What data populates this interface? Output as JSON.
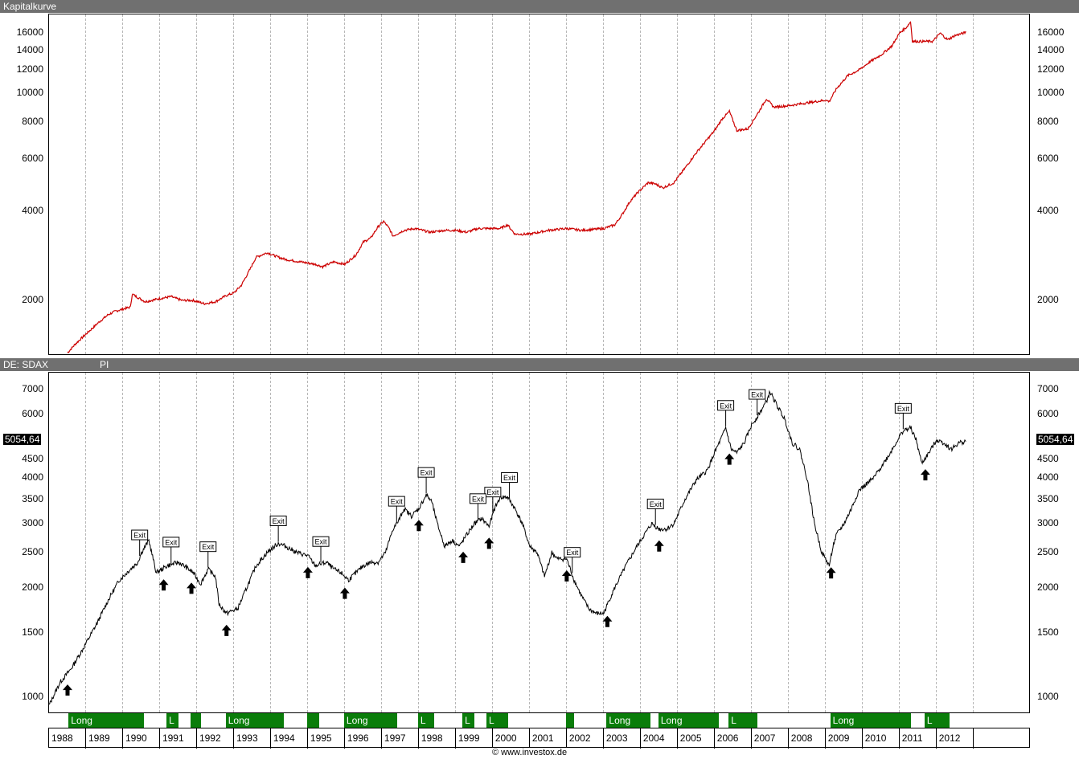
{
  "panel_top": {
    "title": "Kapitalkurve"
  },
  "panel_bottom": {
    "title": "DE: SDAX",
    "subtitle": "PI",
    "last_value": "5054,64"
  },
  "credit": "© www.investox.de",
  "colors": {
    "equity": "#cc0000",
    "price": "#000000",
    "long_bar": "#0a7d0a",
    "titlebar": "#707070"
  },
  "icons": [
    "up-arrow-icon",
    "exit-marker"
  ],
  "chart_data": [
    {
      "type": "line",
      "title": "Kapitalkurve",
      "scale": "log",
      "ylim": [
        1300,
        18500
      ],
      "yticks": [
        2000,
        4000,
        6000,
        8000,
        10000,
        12000,
        14000,
        16000
      ],
      "series": [
        {
          "x": [
            1988.5,
            1988.7,
            1988.9,
            1989.1,
            1989.35,
            1989.6,
            1989.8,
            1990.0,
            1990.2,
            1990.25,
            1990.6,
            1991.0,
            1991.3,
            1991.6,
            1991.9,
            1992.2,
            1992.5,
            1992.8,
            1993.0,
            1993.2,
            1993.4,
            1993.6,
            1993.9,
            1994.2,
            1994.4,
            1994.8,
            1995.2,
            1995.4,
            1995.7,
            1996.0,
            1996.3,
            1996.5,
            1996.7,
            1996.9,
            1997.05,
            1997.2,
            1997.3,
            1997.6,
            1997.9,
            1998.3,
            1998.7,
            1999.0,
            1999.3,
            1999.6,
            2000.0,
            2000.2,
            2000.4,
            2000.6,
            2001.0,
            2001.5,
            2002.0,
            2002.4,
            2003.0,
            2003.3,
            2003.5,
            2003.7,
            2003.9,
            2004.2,
            2004.4,
            2004.6,
            2004.9,
            2005.2,
            2005.5,
            2005.8,
            2006.0,
            2006.2,
            2006.4,
            2006.6,
            2006.9,
            2007.2,
            2007.4,
            2007.6,
            2008.0,
            2008.5,
            2009.0,
            2009.1,
            2009.3,
            2009.6,
            2009.9,
            2010.2,
            2010.5,
            2010.8,
            2011.0,
            2011.2,
            2011.3,
            2011.35,
            2011.6,
            2011.8,
            2011.9,
            2012.1,
            2012.3,
            2012.5,
            2012.8
          ],
          "y": [
            1330,
            1420,
            1500,
            1580,
            1690,
            1790,
            1840,
            1870,
            1900,
            2100,
            1980,
            2030,
            2060,
            2000,
            2000,
            1950,
            1980,
            2080,
            2120,
            2250,
            2500,
            2800,
            2900,
            2800,
            2750,
            2700,
            2650,
            2600,
            2700,
            2650,
            2850,
            3150,
            3250,
            3550,
            3700,
            3500,
            3300,
            3450,
            3500,
            3400,
            3450,
            3450,
            3400,
            3500,
            3500,
            3500,
            3600,
            3350,
            3350,
            3450,
            3500,
            3450,
            3500,
            3600,
            3900,
            4300,
            4600,
            5000,
            4950,
            4800,
            5000,
            5600,
            6300,
            7000,
            7500,
            8200,
            8700,
            7500,
            7600,
            8700,
            9600,
            9000,
            9100,
            9300,
            9500,
            9400,
            10400,
            11500,
            12000,
            12800,
            13500,
            14500,
            16000,
            16800,
            17500,
            15000,
            15000,
            15000,
            15000,
            16000,
            15200,
            15700,
            16100
          ]
        }
      ]
    },
    {
      "type": "line",
      "title": "DE: SDAX",
      "scale": "log",
      "ylim": [
        900,
        7800
      ],
      "yticks": [
        1000,
        1500,
        2000,
        2500,
        3000,
        3500,
        4000,
        4500,
        6000,
        7000
      ],
      "last_value": 5054.64,
      "series": [
        {
          "name": "SDAX",
          "x": [
            1988.0,
            1988.1,
            1988.3,
            1988.6,
            1988.9,
            1989.3,
            1989.6,
            1989.9,
            1990.2,
            1990.4,
            1990.5,
            1990.7,
            1990.9,
            1991.2,
            1991.5,
            1991.7,
            1991.9,
            1992.1,
            1992.3,
            1992.5,
            1992.6,
            1992.8,
            1992.9,
            1993.1,
            1993.3,
            1993.6,
            1993.9,
            1994.2,
            1994.4,
            1994.7,
            1995.0,
            1995.2,
            1995.5,
            1995.7,
            1995.9,
            1996.1,
            1996.3,
            1996.5,
            1996.7,
            1996.9,
            1997.1,
            1997.3,
            1997.45,
            1997.6,
            1997.8,
            1998.0,
            1998.2,
            1998.35,
            1998.5,
            1998.7,
            1998.9,
            1999.1,
            1999.3,
            1999.5,
            1999.7,
            1999.9,
            2000.05,
            2000.2,
            2000.4,
            2000.6,
            2000.8,
            2001.0,
            2001.2,
            2001.4,
            2001.6,
            2001.75,
            2002.0,
            2002.2,
            2002.4,
            2002.6,
            2002.8,
            2003.0,
            2003.15,
            2003.3,
            2003.6,
            2003.9,
            2004.1,
            2004.3,
            2004.5,
            2004.7,
            2004.9,
            2005.2,
            2005.5,
            2005.8,
            2006.0,
            2006.2,
            2006.3,
            2006.45,
            2006.6,
            2006.8,
            2007.0,
            2007.2,
            2007.4,
            2007.5,
            2007.7,
            2007.9,
            2008.1,
            2008.3,
            2008.5,
            2008.7,
            2008.9,
            2009.0,
            2009.1,
            2009.2,
            2009.3,
            2009.5,
            2009.7,
            2009.9,
            2010.1,
            2010.3,
            2010.5,
            2010.7,
            2010.9,
            2011.1,
            2011.3,
            2011.45,
            2011.6,
            2011.8,
            2012.0,
            2012.2,
            2012.4,
            2012.6,
            2012.8
          ],
          "y": [
            950,
            1000,
            1100,
            1200,
            1350,
            1600,
            1850,
            2100,
            2250,
            2350,
            2500,
            2700,
            2200,
            2300,
            2350,
            2280,
            2200,
            2050,
            2250,
            2150,
            1800,
            1700,
            1720,
            1750,
            1950,
            2300,
            2500,
            2650,
            2600,
            2500,
            2450,
            2300,
            2350,
            2250,
            2200,
            2100,
            2200,
            2300,
            2350,
            2350,
            2500,
            2900,
            3050,
            3300,
            3150,
            3300,
            3600,
            3450,
            3000,
            2600,
            2700,
            2600,
            2800,
            3000,
            3100,
            2950,
            3300,
            3550,
            3550,
            3300,
            3000,
            2600,
            2500,
            2150,
            2500,
            2400,
            2400,
            2100,
            1900,
            1750,
            1700,
            1700,
            1850,
            2000,
            2300,
            2600,
            2800,
            3000,
            2900,
            2900,
            3000,
            3500,
            3950,
            4200,
            4700,
            5200,
            5500,
            4800,
            4700,
            5000,
            5600,
            6000,
            6500,
            6900,
            6300,
            5800,
            5000,
            4800,
            4000,
            3000,
            2500,
            2400,
            2300,
            2600,
            2800,
            3000,
            3300,
            3700,
            3850,
            4000,
            4300,
            4600,
            5000,
            5400,
            5500,
            5100,
            4400,
            4700,
            5100,
            5000,
            4800,
            5000,
            5054
          ]
        }
      ],
      "exits": [
        1990.45,
        1991.3,
        1992.3,
        1994.2,
        1995.35,
        1997.4,
        1998.2,
        2000.0,
        2000.45,
        2002.15,
        2004.4,
        2006.3,
        2007.15,
        2011.1,
        1999.6
      ],
      "entries": [
        1988.5,
        1991.1,
        1991.85,
        1992.8,
        1995.0,
        1996.0,
        1998.0,
        1999.2,
        1999.9,
        2002.0,
        2003.1,
        2004.5,
        2006.4,
        2009.15,
        2011.7
      ],
      "long_periods": [
        {
          "from": 1988.55,
          "to": 1990.6,
          "label": "Long"
        },
        {
          "from": 1991.2,
          "to": 1991.55,
          "label": "L"
        },
        {
          "from": 1991.85,
          "to": 1992.15,
          "label": ""
        },
        {
          "from": 1992.8,
          "to": 1994.4,
          "label": "Long"
        },
        {
          "from": 1995.0,
          "to": 1995.35,
          "label": ""
        },
        {
          "from": 1996.0,
          "to": 1997.45,
          "label": "Long"
        },
        {
          "from": 1998.0,
          "to": 1998.45,
          "label": "L"
        },
        {
          "from": 1999.2,
          "to": 1999.55,
          "label": "L"
        },
        {
          "from": 1999.85,
          "to": 2000.45,
          "label": "L"
        },
        {
          "from": 2002.0,
          "to": 2002.25,
          "label": ""
        },
        {
          "from": 2003.1,
          "to": 2004.3,
          "label": "Long"
        },
        {
          "from": 2004.5,
          "to": 2006.15,
          "label": "Long"
        },
        {
          "from": 2006.4,
          "to": 2007.2,
          "label": "L"
        },
        {
          "from": 2009.15,
          "to": 2011.35,
          "label": "Long"
        },
        {
          "from": 2011.7,
          "to": 2012.4,
          "label": "L"
        }
      ],
      "xticks": [
        "1988",
        "1989",
        "1990",
        "1991",
        "1992",
        "1993",
        "1994",
        "1995",
        "1996",
        "1997",
        "1998",
        "1999",
        "2000",
        "2001",
        "2002",
        "2003",
        "2004",
        "2005",
        "2006",
        "2007",
        "2008",
        "2009",
        "2010",
        "2011",
        "2012"
      ]
    }
  ]
}
